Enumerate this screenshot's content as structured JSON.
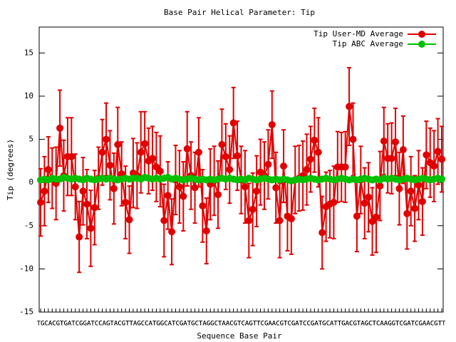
{
  "chart_data": {
    "type": "line",
    "title": "Base Pair Helical Parameter: Tip",
    "x_label": "Sequence Base Pair",
    "y_label": "Tip (degrees)",
    "ylim": [
      -15,
      18
    ],
    "yticks": [
      -15,
      -10,
      -5,
      0,
      5,
      10,
      15
    ],
    "legend": "upper right",
    "categories": [
      "TG",
      "GC",
      "CA",
      "AC",
      "CG",
      "GT",
      "TG",
      "GA",
      "AT",
      "TC",
      "CG",
      "GG",
      "GA",
      "AT",
      "TC",
      "CC",
      "CA",
      "AG",
      "GT",
      "TA",
      "AC",
      "CG",
      "GT",
      "TT",
      "TA",
      "AG",
      "GC",
      "CC",
      "CA",
      "AT",
      "TG",
      "GG",
      "GC",
      "CA",
      "AT",
      "TC",
      "CG",
      "GA",
      "AT",
      "TG",
      "GC",
      "CT",
      "TA",
      "AG",
      "GG",
      "GC",
      "CT",
      "TA",
      "AA",
      "AC",
      "CG",
      "GT",
      "TC",
      "CA",
      "AG",
      "GT",
      "TT",
      "TC",
      "CG",
      "GA",
      "AA",
      "AC",
      "CG",
      "GT",
      "TC",
      "CG",
      "GA",
      "AT",
      "TC",
      "CC",
      "CG",
      "GA",
      "AT",
      "TG",
      "GC",
      "CA",
      "AT",
      "TT",
      "TG",
      "GA",
      "AC",
      "CG",
      "GT",
      "TA",
      "AG",
      "GC",
      "CT",
      "TC",
      "CA",
      "AA",
      "AG",
      "GG",
      "GT",
      "TC",
      "CG",
      "GA",
      "AT",
      "TC",
      "CG",
      "GA",
      "AA",
      "AC",
      "CG",
      "GT",
      "TT"
    ],
    "series": [
      {
        "name": "Tip User-MD Average",
        "color": "#e00000",
        "values": [
          -2.3,
          -1.0,
          1.5,
          0.5,
          -0.1,
          6.3,
          0.8,
          3.0,
          3.0,
          -0.5,
          -6.3,
          -1.0,
          -2.5,
          -5.3,
          -2.9,
          0.5,
          3.5,
          5.0,
          2.0,
          -0.7,
          4.4,
          1.0,
          -2.3,
          -4.3,
          1.1,
          0.8,
          3.5,
          4.5,
          2.5,
          2.8,
          1.8,
          1.3,
          -4.4,
          -1.5,
          -5.7,
          0.3,
          -0.5,
          -1.6,
          3.9,
          0.8,
          -0.6,
          3.5,
          -2.7,
          -5.6,
          -0.2,
          0.2,
          -1.4,
          4.4,
          3.0,
          1.5,
          6.9,
          3.1,
          0.3,
          -0.5,
          -4.4,
          -3.1,
          -1.0,
          1.2,
          0.8,
          2.1,
          6.7,
          -0.6,
          -4.4,
          1.9,
          -3.9,
          -4.2,
          0.3,
          0.5,
          0.8,
          1.5,
          2.7,
          4.9,
          3.5,
          -5.8,
          -2.8,
          -2.5,
          -2.3,
          1.8,
          1.8,
          1.8,
          8.8,
          5.0,
          -3.9,
          0.3,
          -2.4,
          -1.7,
          -4.5,
          -4.0,
          -0.4,
          4.8,
          2.8,
          2.8,
          4.7,
          -0.7,
          3.8,
          -3.6,
          -1.0,
          -3.0,
          -0.3,
          -2.2,
          3.2,
          2.3,
          1.9,
          3.6,
          2.7
        ],
        "errors": [
          3.9,
          4.0,
          3.8,
          3.5,
          4.2,
          4.4,
          4.1,
          4.5,
          4.5,
          3.8,
          4.1,
          3.9,
          4.0,
          4.4,
          4.3,
          3.6,
          3.8,
          4.2,
          4.0,
          4.1,
          4.3,
          3.7,
          4.2,
          3.9,
          4.0,
          3.8,
          4.7,
          3.7,
          3.8,
          3.7,
          4.0,
          4.1,
          4.2,
          3.9,
          3.8,
          4.0,
          4.2,
          4.0,
          4.3,
          3.9,
          4.1,
          4.0,
          4.2,
          3.8,
          4.1,
          4.0,
          3.9,
          4.1,
          3.8,
          3.9,
          4.1,
          4.0,
          3.9,
          4.2,
          4.3,
          4.2,
          4.1,
          3.8,
          3.9,
          4.0,
          3.9,
          4.1,
          4.3,
          4.2,
          4.0,
          4.1,
          3.9,
          3.8,
          4.0,
          4.1,
          3.8,
          3.7,
          4.0,
          4.2,
          4.0,
          3.9,
          4.2,
          4.1,
          4.0,
          4.1,
          4.5,
          4.2,
          4.1,
          3.9,
          4.1,
          4.0,
          3.9,
          4.1,
          4.0,
          3.9,
          4.0,
          4.1,
          3.9,
          4.2,
          3.9,
          4.1,
          4.0,
          3.8,
          4.0,
          3.9,
          3.9,
          4.0,
          4.1,
          3.8,
          3.8
        ]
      },
      {
        "name": "Tip ABC Average",
        "color": "#00c000",
        "values": [
          0.3,
          0.4,
          0.3,
          0.5,
          0.4,
          0.4,
          0.6,
          0.5,
          0.4,
          0.5,
          0.4,
          0.3,
          0.5,
          0.4,
          0.3,
          0.4,
          0.5,
          0.4,
          0.5,
          0.4,
          0.3,
          0.4,
          0.5,
          0.4,
          0.5,
          0.5,
          0.4,
          0.6,
          0.5,
          0.4,
          0.5,
          0.4,
          0.5,
          0.6,
          0.4,
          0.5,
          0.4,
          0.3,
          0.4,
          0.5,
          0.4,
          0.3,
          0.4,
          0.3,
          0.4,
          0.3,
          0.4,
          0.5,
          0.4,
          0.5,
          0.4,
          0.3,
          0.4,
          0.3,
          0.5,
          0.4,
          0.3,
          0.4,
          0.5,
          0.4,
          0.3,
          0.4,
          0.3,
          0.4,
          0.3,
          0.2,
          0.3,
          0.4,
          0.3,
          0.4,
          0.5,
          0.4,
          0.3,
          0.4,
          0.5,
          0.4,
          0.3,
          0.4,
          0.5,
          0.4,
          0.3,
          0.4,
          0.3,
          0.4,
          0.5,
          0.4,
          0.3,
          0.4,
          0.3,
          0.5,
          0.4,
          0.5,
          0.4,
          0.3,
          0.4,
          0.5,
          0.4,
          0.3,
          0.4,
          0.5,
          0.4,
          0.3,
          0.4,
          0.5,
          0.4
        ]
      }
    ]
  }
}
